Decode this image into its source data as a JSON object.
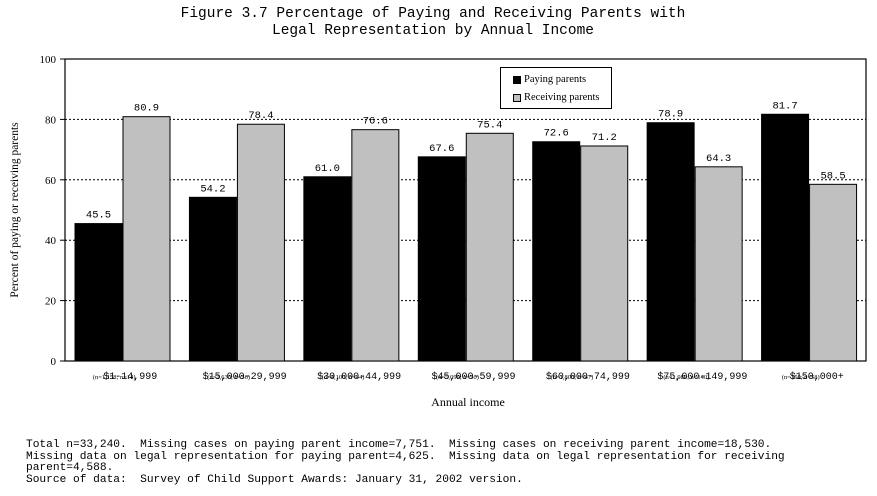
{
  "title_line1": "Figure 3.7  Percentage of Paying and Receiving Parents with",
  "title_line2": "Legal Representation by Annual Income",
  "chart_data": {
    "type": "bar",
    "categories": [
      "$1-14,999",
      "$15,000-29,999",
      "$30,000-44,999",
      "$45,000-59,999",
      "$60,000-74,999",
      "$75,000-149,999",
      "$150,000+"
    ],
    "sample_labels": [
      "(n=1,158; n=14)",
      "(n=1,630; n=56)",
      "(n=4,100; n=44)",
      "(n=5,099; n=50)",
      "(n=1,800; n=47)",
      "(n=1,980; n=140)",
      "(n=350; n=58)"
    ],
    "series": [
      {
        "name": "Paying parents",
        "values": [
          45.5,
          54.2,
          61.0,
          67.6,
          72.6,
          78.9,
          81.7
        ],
        "color": "#000000"
      },
      {
        "name": "Receiving parents",
        "values": [
          80.9,
          78.4,
          76.6,
          75.4,
          71.2,
          64.3,
          58.5
        ],
        "color": "#c0c0c0"
      }
    ],
    "ylim": [
      0,
      100
    ],
    "yticks": [
      0,
      20,
      40,
      60,
      80,
      100
    ],
    "xlabel": "Annual income",
    "ylabel": "Percent of paying or receiving parents",
    "grid": "horizontal dotted",
    "legend_position": "top-center"
  },
  "footnote": {
    "line1": "Total n=33,240.  Missing cases on paying parent income=7,751.  Missing cases on receiving parent income=18,530.",
    "line2": "Missing data on legal representation for paying parent=4,625.  Missing data on legal representation for receiving",
    "line3": "parent=4,588.",
    "line4": "Source of data:  Survey of Child Support Awards: January 31, 2002 version."
  }
}
